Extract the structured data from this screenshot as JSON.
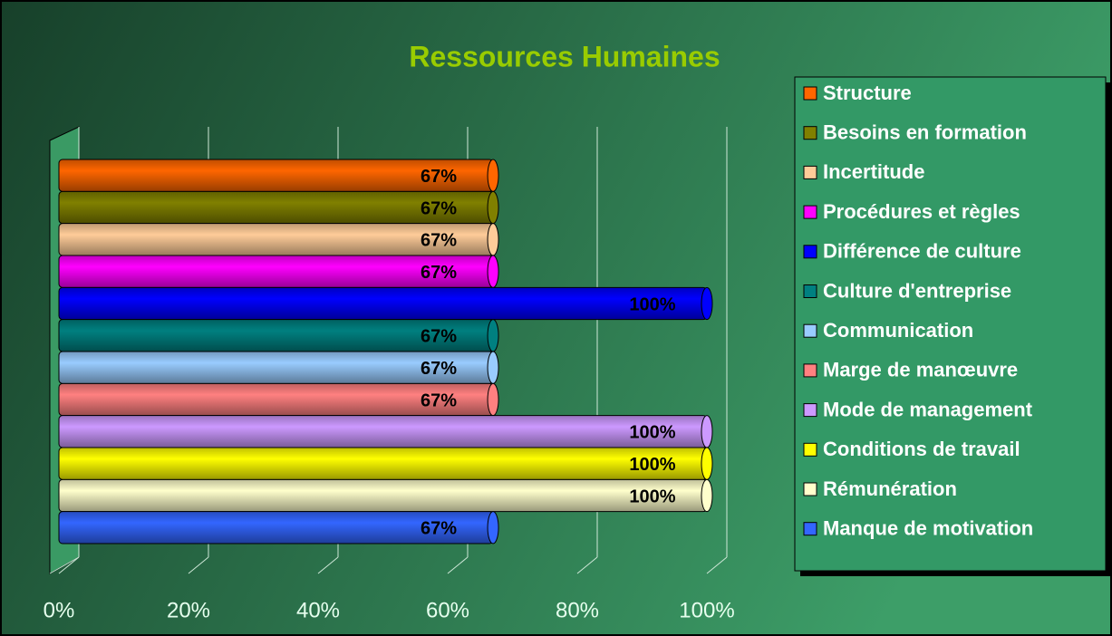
{
  "chart_data": {
    "type": "bar",
    "orientation": "horizontal",
    "title": "Ressources Humaines",
    "xlim": [
      0,
      100
    ],
    "xticks": [
      {
        "value": 0,
        "label": "0%"
      },
      {
        "value": 20,
        "label": "20%"
      },
      {
        "value": 40,
        "label": "40%"
      },
      {
        "value": 60,
        "label": "60%"
      },
      {
        "value": 80,
        "label": "80%"
      },
      {
        "value": 100,
        "label": "100%"
      }
    ],
    "grid": true,
    "legend": "right",
    "series": [
      {
        "name": "Structure",
        "color": "#ff6600",
        "values": [
          67
        ],
        "value_labels": [
          "67%"
        ]
      },
      {
        "name": "Besoins en formation",
        "color": "#808000",
        "values": [
          67
        ],
        "value_labels": [
          "67%"
        ]
      },
      {
        "name": "Incertitude",
        "color": "#ffcc99",
        "values": [
          67
        ],
        "value_labels": [
          "67%"
        ]
      },
      {
        "name": "Procédures et règles",
        "color": "#ff00ff",
        "values": [
          67
        ],
        "value_labels": [
          "67%"
        ]
      },
      {
        "name": "Différence de culture",
        "color": "#0000ff",
        "values": [
          100
        ],
        "value_labels": [
          "100%"
        ]
      },
      {
        "name": "Culture d'entreprise",
        "color": "#008080",
        "values": [
          67
        ],
        "value_labels": [
          "67%"
        ]
      },
      {
        "name": "Communication",
        "color": "#99ccff",
        "values": [
          67
        ],
        "value_labels": [
          "67%"
        ]
      },
      {
        "name": "Marge de manœuvre",
        "color": "#ff8080",
        "values": [
          67
        ],
        "value_labels": [
          "67%"
        ]
      },
      {
        "name": "Mode de management",
        "color": "#cc99ff",
        "values": [
          100
        ],
        "value_labels": [
          "100%"
        ]
      },
      {
        "name": "Conditions de travail",
        "color": "#ffff00",
        "values": [
          100
        ],
        "value_labels": [
          "100%"
        ]
      },
      {
        "name": "Rémunération",
        "color": "#ffffcc",
        "values": [
          100
        ],
        "value_labels": [
          "100%"
        ]
      },
      {
        "name": "Manque de motivation",
        "color": "#3366ff",
        "values": [
          67
        ],
        "value_labels": [
          "67%"
        ]
      }
    ]
  }
}
